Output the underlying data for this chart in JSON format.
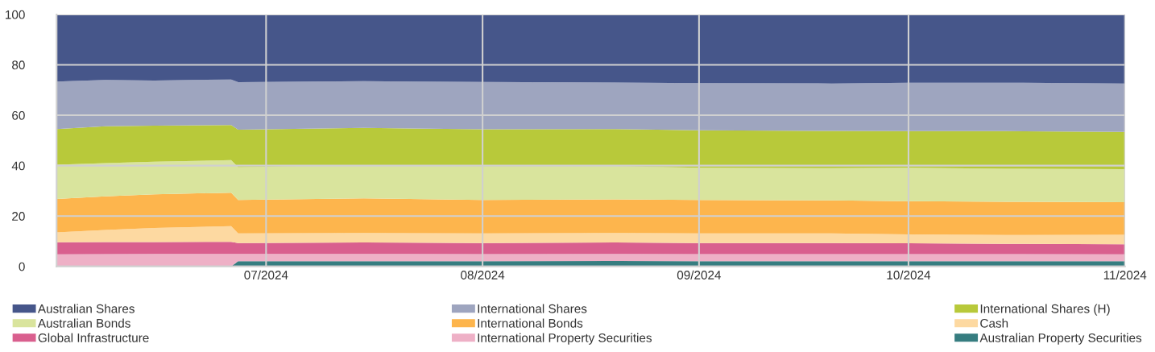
{
  "chart_data": {
    "type": "area",
    "stacked": true,
    "x": [
      "2024-06-01",
      "2024-06-08",
      "2024-06-15",
      "2024-06-26",
      "2024-06-27",
      "2024-07-15",
      "2024-08-01",
      "2024-08-20",
      "2024-09-01",
      "2024-09-20",
      "2024-10-01",
      "2024-10-15",
      "2024-11-01"
    ],
    "series": [
      {
        "name": "Australian Property Securities",
        "color": "#367d80",
        "values": [
          0,
          0,
          0,
          0,
          2.1,
          2.1,
          2.1,
          2.2,
          2.1,
          2.1,
          2.1,
          2.1,
          2.1
        ]
      },
      {
        "name": "International Property Securities",
        "color": "#eeb0c6",
        "values": [
          4.8,
          4.9,
          5.0,
          5.0,
          2.9,
          2.9,
          2.8,
          2.8,
          2.8,
          2.8,
          2.8,
          2.8,
          2.7
        ]
      },
      {
        "name": "Global Infrastructure",
        "color": "#d95f8e",
        "values": [
          4.8,
          4.8,
          4.7,
          4.8,
          4.3,
          4.5,
          4.4,
          4.5,
          4.4,
          4.4,
          4.3,
          4.1,
          4.0
        ]
      },
      {
        "name": "Cash",
        "color": "#fdd9a1",
        "values": [
          3.9,
          4.8,
          5.6,
          6.2,
          3.8,
          3.8,
          3.8,
          3.8,
          3.8,
          3.8,
          3.5,
          3.5,
          3.8
        ]
      },
      {
        "name": "International Bonds",
        "color": "#fdb54d",
        "values": [
          13.3,
          13.3,
          13.3,
          13.3,
          13.3,
          13.7,
          13.3,
          13.3,
          13.3,
          13.1,
          13.2,
          13.2,
          12.9
        ]
      },
      {
        "name": "Australian Bonds",
        "color": "#d9e49d",
        "values": [
          13.6,
          13.2,
          13.0,
          12.9,
          13.0,
          13.2,
          13.3,
          13.2,
          12.8,
          12.8,
          13.3,
          13.1,
          13.1
        ]
      },
      {
        "name": "International Shares (H)",
        "color": "#b8c93a",
        "values": [
          14.1,
          14.6,
          14.3,
          13.9,
          14.9,
          14.8,
          14.7,
          14.7,
          14.8,
          14.8,
          14.5,
          14.9,
          14.8
        ]
      },
      {
        "name": "International Shares",
        "color": "#9ea5bf",
        "values": [
          18.9,
          18.4,
          17.9,
          18.1,
          18.8,
          18.5,
          18.8,
          18.5,
          18.7,
          18.8,
          19.2,
          19.2,
          19.2
        ]
      },
      {
        "name": "Australian Shares",
        "color": "#46568a",
        "values": [
          26.6,
          26.0,
          26.2,
          25.8,
          26.9,
          26.5,
          26.8,
          27.0,
          27.3,
          27.4,
          27.1,
          27.1,
          27.4
        ]
      }
    ],
    "xlim": [
      "2024-06-01",
      "2024-11-01"
    ],
    "xticks": [
      {
        "value": "2024-07-01",
        "label": "07/2024"
      },
      {
        "value": "2024-08-01",
        "label": "08/2024"
      },
      {
        "value": "2024-09-01",
        "label": "09/2024"
      },
      {
        "value": "2024-10-01",
        "label": "10/2024"
      },
      {
        "value": "2024-11-01",
        "label": "11/2024"
      }
    ],
    "ylim": [
      0,
      100
    ],
    "yticks": [
      0,
      20,
      40,
      60,
      80,
      100
    ],
    "grid": true,
    "legend": "bottom"
  }
}
